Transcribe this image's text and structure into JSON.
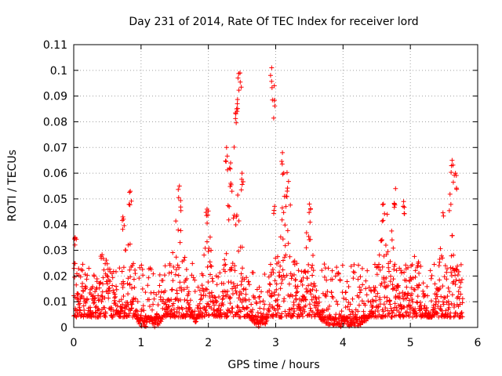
{
  "chart_data": {
    "type": "scatter",
    "title": "Day 231 of 2014, Rate Of TEC Index for receiver lord",
    "xlabel": "GPS time / hours",
    "ylabel": "ROTI / TECUs",
    "xlim": [
      0,
      6
    ],
    "ylim": [
      0,
      0.11
    ],
    "x_ticks": [
      "0",
      "1",
      "2",
      "3",
      "4",
      "5",
      "6"
    ],
    "y_ticks": [
      "0",
      "0.01",
      "0.02",
      "0.03",
      "0.04",
      "0.05",
      "0.06",
      "0.07",
      "0.08",
      "0.09",
      "0.1",
      "0.11"
    ],
    "grid": true,
    "marker": "+",
    "color": "#ff0000",
    "x_data_range": [
      0,
      5.78
    ],
    "baseline_range": [
      0.004,
      0.025
    ],
    "notable_points": [
      {
        "x": 0.02,
        "y": 0.035
      },
      {
        "x": 0.73,
        "y": 0.043
      },
      {
        "x": 0.84,
        "y": 0.053
      },
      {
        "x": 1.57,
        "y": 0.055
      },
      {
        "x": 1.98,
        "y": 0.046
      },
      {
        "x": 2.27,
        "y": 0.07
      },
      {
        "x": 2.33,
        "y": 0.064
      },
      {
        "x": 2.42,
        "y": 0.085
      },
      {
        "x": 2.44,
        "y": 0.097
      },
      {
        "x": 2.47,
        "y": 0.099
      },
      {
        "x": 2.5,
        "y": 0.06
      },
      {
        "x": 2.94,
        "y": 0.101
      },
      {
        "x": 2.98,
        "y": 0.094
      },
      {
        "x": 3.1,
        "y": 0.068
      },
      {
        "x": 3.5,
        "y": 0.048
      },
      {
        "x": 4.6,
        "y": 0.048
      },
      {
        "x": 4.78,
        "y": 0.054
      },
      {
        "x": 4.9,
        "y": 0.049
      },
      {
        "x": 5.62,
        "y": 0.065
      },
      {
        "x": 5.67,
        "y": 0.06
      }
    ],
    "activity_windows": [
      {
        "center": 0.1,
        "width": 0.15,
        "peak": 0.033
      },
      {
        "center": 0.45,
        "width": 0.25,
        "peak": 0.03
      },
      {
        "center": 0.8,
        "width": 0.12,
        "peak": 0.05
      },
      {
        "center": 1.55,
        "width": 0.2,
        "peak": 0.05
      },
      {
        "center": 2.0,
        "width": 0.15,
        "peak": 0.044
      },
      {
        "center": 2.38,
        "width": 0.2,
        "peak": 0.072
      },
      {
        "center": 2.97,
        "width": 0.08,
        "peak": 0.06
      },
      {
        "center": 3.15,
        "width": 0.2,
        "peak": 0.062
      },
      {
        "center": 3.5,
        "width": 0.15,
        "peak": 0.044
      },
      {
        "center": 4.65,
        "width": 0.25,
        "peak": 0.045
      },
      {
        "center": 5.05,
        "width": 0.25,
        "peak": 0.03
      },
      {
        "center": 5.55,
        "width": 0.2,
        "peak": 0.058
      }
    ]
  }
}
